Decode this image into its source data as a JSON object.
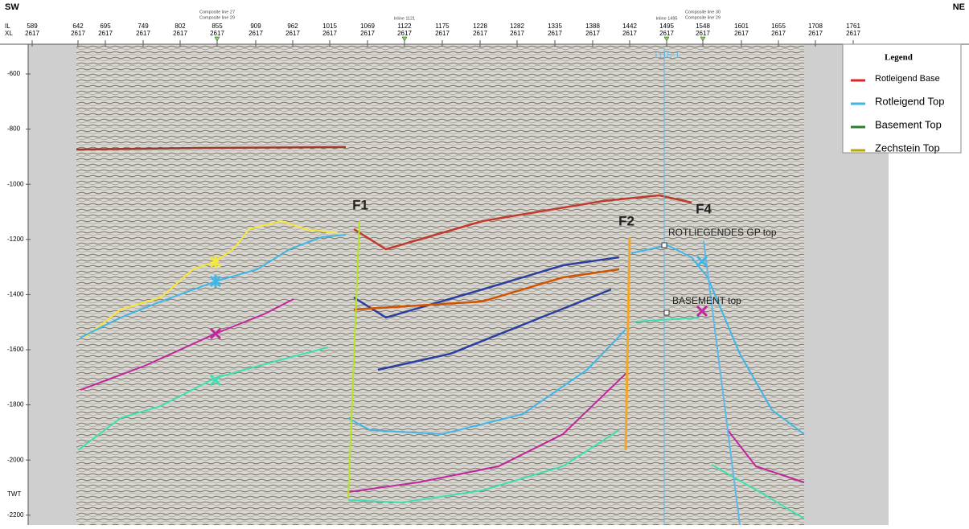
{
  "header": {
    "left_corner": "SW",
    "right_corner": "NE",
    "il_label": "IL",
    "xl_label": "XL"
  },
  "top_axis": {
    "traces": [
      {
        "il": "589",
        "xl": "2617"
      },
      {
        "il": "642",
        "xl": "2617"
      },
      {
        "il": "695",
        "xl": "2617"
      },
      {
        "il": "749",
        "xl": "2617"
      },
      {
        "il": "802",
        "xl": "2617"
      },
      {
        "il": "855",
        "xl": "2617"
      },
      {
        "il": "909",
        "xl": "2617"
      },
      {
        "il": "962",
        "xl": "2617"
      },
      {
        "il": "1015",
        "xl": "2617"
      },
      {
        "il": "1069",
        "xl": "2617"
      },
      {
        "il": "1122",
        "xl": "2617"
      },
      {
        "il": "1175",
        "xl": "2617"
      },
      {
        "il": "1228",
        "xl": "2617"
      },
      {
        "il": "1282",
        "xl": "2617"
      },
      {
        "il": "1335",
        "xl": "2617"
      },
      {
        "il": "1388",
        "xl": "2617"
      },
      {
        "il": "1442",
        "xl": "2617"
      },
      {
        "il": "1495",
        "xl": "2617"
      },
      {
        "il": "1548",
        "xl": "2617"
      },
      {
        "il": "1601",
        "xl": "2617"
      },
      {
        "il": "1655",
        "xl": "2617"
      },
      {
        "il": "1708",
        "xl": "2617"
      },
      {
        "il": "1761",
        "xl": "2617"
      }
    ],
    "markers": [
      [
        "Composite line 27",
        "Composite line 29"
      ],
      [
        "Inline 1121"
      ],
      [
        "Inline 1495"
      ],
      [
        "Composite line 30",
        "Composite line 29"
      ]
    ]
  },
  "left_axis": {
    "labels": [
      "-600",
      "-800",
      "-1000",
      "-1200",
      "-1400",
      "-1600",
      "-1800",
      "-2000",
      "-2200"
    ],
    "title": "TWT"
  },
  "legend": {
    "title": "Legend",
    "items": [
      {
        "name": "Rotleigend Base",
        "color": "#e0262b"
      },
      {
        "name": "Rotleigend Top",
        "color": "#3fb6e8"
      },
      {
        "name": "Basement Top",
        "color": "#2e7d32"
      },
      {
        "name": "Zechstein Top",
        "color": "#b8a800"
      }
    ]
  },
  "annotations": {
    "faults": [
      "F1",
      "F2",
      "F4"
    ],
    "well": "1115-1",
    "rotliegendes_top": "ROTLIEGENDES GP top",
    "basement_top": "BASEMENT top"
  }
}
